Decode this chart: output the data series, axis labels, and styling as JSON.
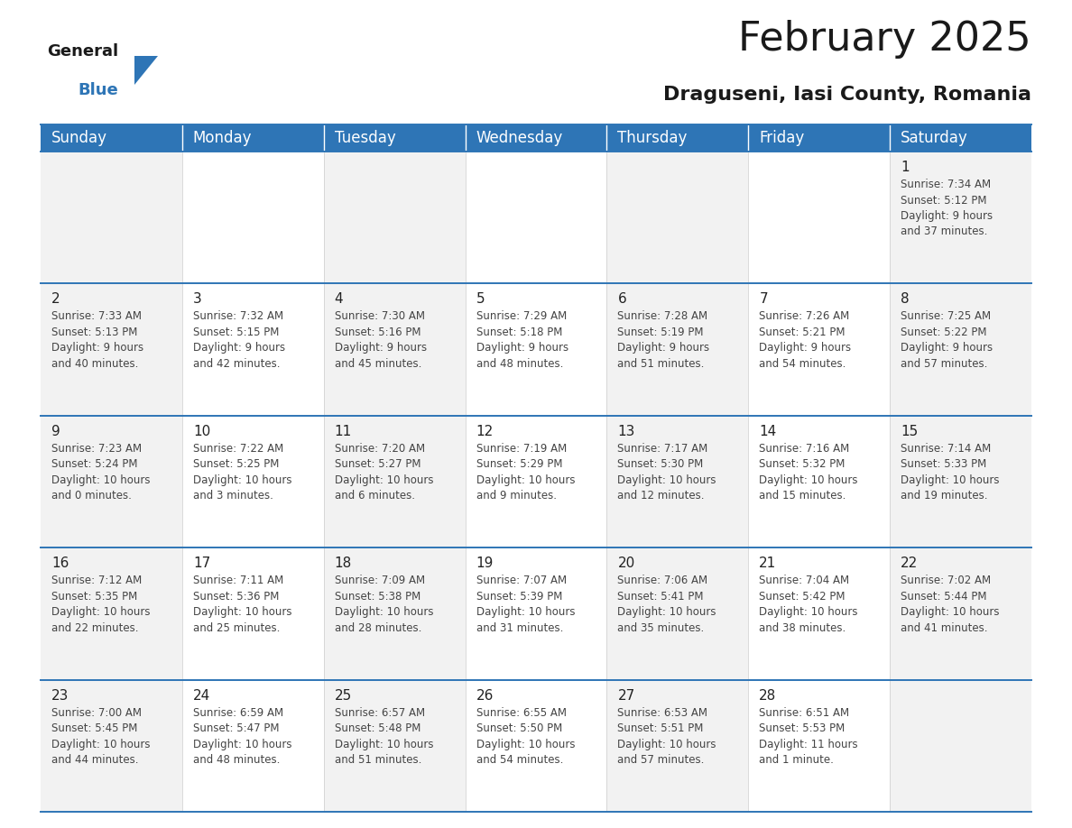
{
  "title": "February 2025",
  "subtitle": "Draguseni, Iasi County, Romania",
  "header_bg_color": "#2e75b6",
  "header_text_color": "#ffffff",
  "cell_bg_color": "#f2f2f2",
  "cell_bg_white": "#ffffff",
  "border_color": "#2e75b6",
  "grid_line_color": "#c0c0c0",
  "day_number_color": "#222222",
  "cell_text_color": "#444444",
  "days_of_week": [
    "Sunday",
    "Monday",
    "Tuesday",
    "Wednesday",
    "Thursday",
    "Friday",
    "Saturday"
  ],
  "weeks": [
    [
      {
        "day": null,
        "info": null
      },
      {
        "day": null,
        "info": null
      },
      {
        "day": null,
        "info": null
      },
      {
        "day": null,
        "info": null
      },
      {
        "day": null,
        "info": null
      },
      {
        "day": null,
        "info": null
      },
      {
        "day": 1,
        "info": "Sunrise: 7:34 AM\nSunset: 5:12 PM\nDaylight: 9 hours\nand 37 minutes."
      }
    ],
    [
      {
        "day": 2,
        "info": "Sunrise: 7:33 AM\nSunset: 5:13 PM\nDaylight: 9 hours\nand 40 minutes."
      },
      {
        "day": 3,
        "info": "Sunrise: 7:32 AM\nSunset: 5:15 PM\nDaylight: 9 hours\nand 42 minutes."
      },
      {
        "day": 4,
        "info": "Sunrise: 7:30 AM\nSunset: 5:16 PM\nDaylight: 9 hours\nand 45 minutes."
      },
      {
        "day": 5,
        "info": "Sunrise: 7:29 AM\nSunset: 5:18 PM\nDaylight: 9 hours\nand 48 minutes."
      },
      {
        "day": 6,
        "info": "Sunrise: 7:28 AM\nSunset: 5:19 PM\nDaylight: 9 hours\nand 51 minutes."
      },
      {
        "day": 7,
        "info": "Sunrise: 7:26 AM\nSunset: 5:21 PM\nDaylight: 9 hours\nand 54 minutes."
      },
      {
        "day": 8,
        "info": "Sunrise: 7:25 AM\nSunset: 5:22 PM\nDaylight: 9 hours\nand 57 minutes."
      }
    ],
    [
      {
        "day": 9,
        "info": "Sunrise: 7:23 AM\nSunset: 5:24 PM\nDaylight: 10 hours\nand 0 minutes."
      },
      {
        "day": 10,
        "info": "Sunrise: 7:22 AM\nSunset: 5:25 PM\nDaylight: 10 hours\nand 3 minutes."
      },
      {
        "day": 11,
        "info": "Sunrise: 7:20 AM\nSunset: 5:27 PM\nDaylight: 10 hours\nand 6 minutes."
      },
      {
        "day": 12,
        "info": "Sunrise: 7:19 AM\nSunset: 5:29 PM\nDaylight: 10 hours\nand 9 minutes."
      },
      {
        "day": 13,
        "info": "Sunrise: 7:17 AM\nSunset: 5:30 PM\nDaylight: 10 hours\nand 12 minutes."
      },
      {
        "day": 14,
        "info": "Sunrise: 7:16 AM\nSunset: 5:32 PM\nDaylight: 10 hours\nand 15 minutes."
      },
      {
        "day": 15,
        "info": "Sunrise: 7:14 AM\nSunset: 5:33 PM\nDaylight: 10 hours\nand 19 minutes."
      }
    ],
    [
      {
        "day": 16,
        "info": "Sunrise: 7:12 AM\nSunset: 5:35 PM\nDaylight: 10 hours\nand 22 minutes."
      },
      {
        "day": 17,
        "info": "Sunrise: 7:11 AM\nSunset: 5:36 PM\nDaylight: 10 hours\nand 25 minutes."
      },
      {
        "day": 18,
        "info": "Sunrise: 7:09 AM\nSunset: 5:38 PM\nDaylight: 10 hours\nand 28 minutes."
      },
      {
        "day": 19,
        "info": "Sunrise: 7:07 AM\nSunset: 5:39 PM\nDaylight: 10 hours\nand 31 minutes."
      },
      {
        "day": 20,
        "info": "Sunrise: 7:06 AM\nSunset: 5:41 PM\nDaylight: 10 hours\nand 35 minutes."
      },
      {
        "day": 21,
        "info": "Sunrise: 7:04 AM\nSunset: 5:42 PM\nDaylight: 10 hours\nand 38 minutes."
      },
      {
        "day": 22,
        "info": "Sunrise: 7:02 AM\nSunset: 5:44 PM\nDaylight: 10 hours\nand 41 minutes."
      }
    ],
    [
      {
        "day": 23,
        "info": "Sunrise: 7:00 AM\nSunset: 5:45 PM\nDaylight: 10 hours\nand 44 minutes."
      },
      {
        "day": 24,
        "info": "Sunrise: 6:59 AM\nSunset: 5:47 PM\nDaylight: 10 hours\nand 48 minutes."
      },
      {
        "day": 25,
        "info": "Sunrise: 6:57 AM\nSunset: 5:48 PM\nDaylight: 10 hours\nand 51 minutes."
      },
      {
        "day": 26,
        "info": "Sunrise: 6:55 AM\nSunset: 5:50 PM\nDaylight: 10 hours\nand 54 minutes."
      },
      {
        "day": 27,
        "info": "Sunrise: 6:53 AM\nSunset: 5:51 PM\nDaylight: 10 hours\nand 57 minutes."
      },
      {
        "day": 28,
        "info": "Sunrise: 6:51 AM\nSunset: 5:53 PM\nDaylight: 11 hours\nand 1 minute."
      },
      {
        "day": null,
        "info": null
      }
    ]
  ],
  "title_fontsize": 32,
  "subtitle_fontsize": 16,
  "header_fontsize": 12,
  "day_number_fontsize": 11,
  "cell_text_fontsize": 8.5
}
